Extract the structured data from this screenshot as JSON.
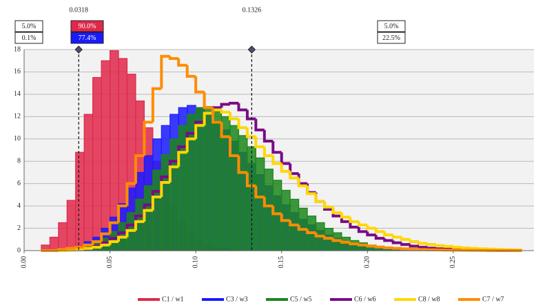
{
  "chart_data": {
    "type": "histogram",
    "bins": [
      0.01,
      0.015,
      0.02,
      0.025,
      0.03,
      0.035,
      0.04,
      0.045,
      0.05,
      0.055,
      0.06,
      0.065,
      0.07,
      0.075,
      0.08,
      0.085,
      0.09,
      0.095,
      0.1,
      0.105,
      0.11,
      0.115,
      0.12,
      0.125,
      0.13,
      0.135,
      0.14,
      0.145,
      0.15,
      0.155,
      0.16,
      0.165,
      0.17,
      0.175,
      0.18,
      0.185,
      0.19,
      0.195,
      0.2,
      0.205,
      0.21,
      0.215,
      0.22,
      0.225,
      0.23,
      0.235,
      0.24,
      0.245,
      0.25,
      0.255,
      0.26,
      0.265,
      0.27,
      0.275,
      0.28,
      0.285,
      0.29
    ],
    "series": [
      {
        "name": "C1 / w1",
        "color": "#e0284a",
        "fill": true,
        "values": [
          0.5,
          1.2,
          2.5,
          4.5,
          8.8,
          12.2,
          15.5,
          17.0,
          17.9,
          17.2,
          15.8,
          13.4,
          11.0,
          8.0,
          5.8,
          4.0,
          2.6,
          1.6,
          1.0,
          0.6,
          0.3,
          0.2,
          0.1,
          0,
          0,
          0,
          0,
          0,
          0,
          0,
          0,
          0,
          0,
          0,
          0,
          0,
          0,
          0,
          0,
          0,
          0,
          0,
          0,
          0,
          0,
          0,
          0,
          0,
          0,
          0,
          0,
          0,
          0,
          0,
          0,
          0
        ]
      },
      {
        "name": "C3 / w3",
        "color": "#1a1aff",
        "fill": true,
        "values": [
          0,
          0,
          0.1,
          0.2,
          0.4,
          0.8,
          1.2,
          2.0,
          3.0,
          4.2,
          5.6,
          7.0,
          8.5,
          10.0,
          11.2,
          12.2,
          12.8,
          13.0,
          12.8,
          12.3,
          11.6,
          10.8,
          9.8,
          8.8,
          7.8,
          6.8,
          5.8,
          4.9,
          4.1,
          3.4,
          2.8,
          2.3,
          1.8,
          1.4,
          1.1,
          0.8,
          0.6,
          0.45,
          0.3,
          0.2,
          0.15,
          0.1,
          0.05,
          0.05,
          0.03,
          0.02,
          0.02,
          0.01,
          0,
          0,
          0,
          0,
          0,
          0,
          0,
          0
        ]
      },
      {
        "name": "C5 / w5",
        "color": "#1c861c",
        "fill": true,
        "values": [
          0,
          0,
          0,
          0.1,
          0.2,
          0.4,
          0.7,
          1.1,
          1.7,
          2.5,
          3.4,
          4.6,
          5.8,
          7.2,
          8.6,
          10.0,
          11.2,
          12.2,
          12.8,
          12.9,
          12.6,
          12.0,
          11.2,
          10.3,
          9.3,
          8.3,
          7.3,
          6.3,
          5.4,
          4.6,
          3.8,
          3.1,
          2.5,
          2.0,
          1.6,
          1.2,
          0.9,
          0.7,
          0.5,
          0.35,
          0.25,
          0.18,
          0.12,
          0.08,
          0.05,
          0.03,
          0.02,
          0.02,
          0.01,
          0.01,
          0,
          0,
          0,
          0,
          0,
          0
        ]
      },
      {
        "name": "C6 / w6",
        "color": "#7a0a86",
        "fill": false,
        "values": [
          0,
          0,
          0,
          0.05,
          0.1,
          0.2,
          0.4,
          0.7,
          1.1,
          1.6,
          2.3,
          3.1,
          4.1,
          5.3,
          6.6,
          8.0,
          9.3,
          10.5,
          11.5,
          12.3,
          12.8,
          13.1,
          13.2,
          12.6,
          11.8,
          10.8,
          9.8,
          8.8,
          7.8,
          6.9,
          6.0,
          5.2,
          4.4,
          3.7,
          3.1,
          2.6,
          2.1,
          1.7,
          1.4,
          1.1,
          0.9,
          0.7,
          0.55,
          0.4,
          0.3,
          0.22,
          0.16,
          0.12,
          0.08,
          0.06,
          0.04,
          0.03,
          0.02,
          0.01,
          0.01,
          0
        ]
      },
      {
        "name": "C8 / w8",
        "color": "#ffd700",
        "fill": false,
        "values": [
          0,
          0,
          0,
          0.05,
          0.1,
          0.2,
          0.3,
          0.5,
          0.8,
          1.2,
          1.8,
          2.6,
          3.6,
          4.8,
          6.1,
          7.5,
          8.8,
          10.0,
          11.2,
          12.3,
          12.6,
          12.4,
          11.8,
          11.0,
          10.2,
          9.3,
          8.5,
          7.8,
          7.1,
          6.5,
          5.8,
          5.1,
          4.4,
          3.9,
          3.4,
          3.0,
          2.6,
          2.3,
          2.0,
          1.7,
          1.4,
          1.2,
          1.0,
          0.8,
          0.65,
          0.55,
          0.45,
          0.38,
          0.3,
          0.25,
          0.2,
          0.16,
          0.13,
          0.1,
          0.08,
          0.06
        ]
      },
      {
        "name": "C7 / w7",
        "color": "#ff8c00",
        "fill": false,
        "values": [
          0,
          0,
          0.1,
          0.2,
          0.3,
          0.5,
          0.8,
          1.5,
          2.5,
          4.0,
          6.0,
          8.5,
          11.5,
          14.5,
          17.4,
          17.2,
          16.6,
          15.6,
          14.2,
          12.8,
          11.5,
          10.2,
          8.5,
          7.0,
          5.8,
          4.8,
          4.0,
          3.3,
          2.7,
          2.3,
          1.9,
          1.6,
          1.3,
          1.1,
          0.9,
          0.75,
          0.6,
          0.5,
          0.4,
          0.32,
          0.25,
          0.2,
          0.16,
          0.13,
          0.1,
          0.08,
          0.06,
          0.05,
          0.04,
          0.03,
          0.02,
          0.02,
          0.01,
          0.01,
          0.01,
          0
        ]
      }
    ],
    "markers": [
      0.0318,
      0.1326
    ],
    "delimiter_stats": [
      {
        "color": "#e0284a",
        "values": [
          5.0,
          90.0,
          5.0
        ],
        "value_labels": [
          "5.0%",
          "90.0%",
          "5.0%"
        ]
      },
      {
        "color": "#1a1aff",
        "values": [
          0.1,
          77.4,
          22.5
        ],
        "value_labels": [
          "0.1%",
          "77.4%",
          "22.5%"
        ]
      }
    ],
    "xlim": [
      0,
      0.297
    ],
    "ylim": [
      0,
      18
    ],
    "xticks": [
      {
        "value": 0,
        "label": "0.00"
      },
      {
        "value": 0.05,
        "label": "0.05"
      },
      {
        "value": 0.1,
        "label": "0.10"
      },
      {
        "value": 0.15,
        "label": "0.15"
      },
      {
        "value": 0.2,
        "label": "0.20"
      },
      {
        "value": 0.25,
        "label": "0.25"
      }
    ],
    "yticks": [
      0,
      2,
      4,
      6,
      8,
      10,
      12,
      14,
      16,
      18
    ],
    "grid": true,
    "legend": "bottom"
  }
}
